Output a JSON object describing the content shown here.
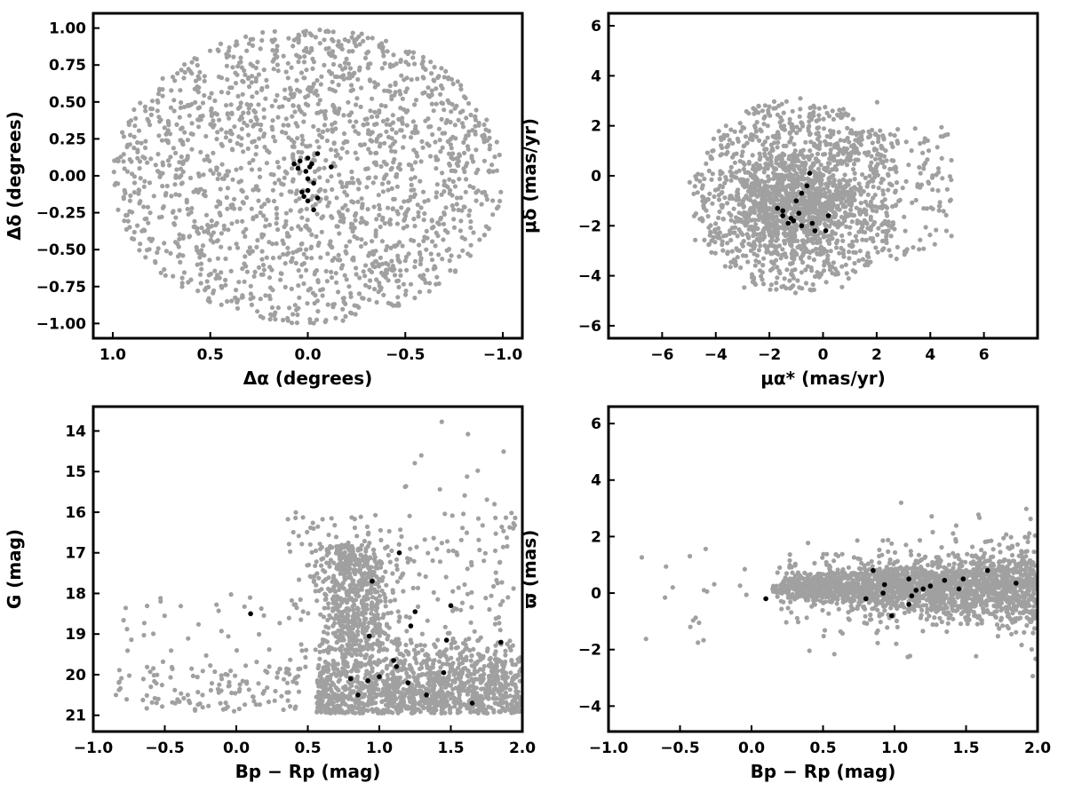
{
  "figure": {
    "background": "#ffffff",
    "field_color": "#a0a0a0",
    "member_color": "#000000"
  },
  "chart_data": [
    {
      "id": "panel-position",
      "type": "scatter",
      "xlabel": "Δα (degrees)",
      "ylabel": "Δδ (degrees)",
      "xlim": [
        1.1,
        -1.1
      ],
      "ylim": [
        -1.1,
        1.1
      ],
      "x_reversed": true,
      "xticks": [
        1.0,
        0.5,
        0.0,
        -0.5,
        -1.0
      ],
      "xtick_labels": [
        "1.0",
        "0.5",
        "0.0",
        "−0.5",
        "−1.0"
      ],
      "yticks": [
        -1.0,
        -0.75,
        -0.5,
        -0.25,
        0.0,
        0.25,
        0.5,
        0.75,
        1.0
      ],
      "ytick_labels": [
        "−1.00",
        "−0.75",
        "−0.50",
        "−0.25",
        "0.00",
        "0.25",
        "0.50",
        "0.75",
        "1.00"
      ],
      "field_distribution": {
        "shape": "disk",
        "center": [
          0.0,
          0.0
        ],
        "radius": 1.0,
        "count": 1800
      },
      "members": {
        "x": [
          0.04,
          0.0,
          -0.01,
          -0.02,
          0.05,
          0.07,
          0.01,
          0.0,
          -0.03,
          -0.12,
          0.0,
          0.03,
          -0.05,
          0.0,
          0.02,
          -0.03,
          -0.05
        ],
        "y": [
          0.1,
          0.12,
          0.06,
          0.08,
          0.05,
          0.08,
          0.03,
          -0.02,
          -0.05,
          0.06,
          -0.1,
          -0.11,
          -0.15,
          -0.17,
          -0.14,
          -0.23,
          0.15
        ]
      }
    },
    {
      "id": "panel-proper-motion",
      "type": "scatter",
      "xlabel": "μα* (mas/yr)",
      "ylabel": "μδ (mas/yr)",
      "xlim": [
        -8,
        8
      ],
      "ylim": [
        -6.5,
        6.5
      ],
      "xticks": [
        -6,
        -4,
        -2,
        0,
        2,
        4,
        6
      ],
      "xtick_labels": [
        "−6",
        "−4",
        "−2",
        "0",
        "2",
        "4",
        "6"
      ],
      "yticks": [
        -6,
        -4,
        -2,
        0,
        2,
        4,
        6
      ],
      "ytick_labels": [
        "−6",
        "−4",
        "−2",
        "0",
        "2",
        "4",
        "6"
      ],
      "field_distribution": {
        "shape": "disk",
        "center": [
          -1.0,
          -0.8
        ],
        "radius": 4.0,
        "concentration": [
          -1.0,
          -1.0
        ],
        "count": 2000,
        "sparse_tail_toward": [
          4.0,
          0.0
        ]
      },
      "members": {
        "x": [
          -0.5,
          -1.7,
          -1.5,
          -1.3,
          -0.8,
          -1.0,
          -1.1,
          -0.9,
          -1.2,
          -0.6,
          -0.4,
          0.2,
          0.1,
          -1.5,
          -0.8,
          -0.3
        ],
        "y": [
          0.1,
          -1.3,
          -1.6,
          -1.9,
          -0.7,
          -1.0,
          -1.8,
          -1.5,
          -1.7,
          -0.4,
          -1.9,
          -1.6,
          -2.2,
          -1.4,
          -2.0,
          -2.2
        ]
      }
    },
    {
      "id": "panel-cmd",
      "type": "scatter",
      "xlabel": "Bp − Rp (mag)",
      "ylabel": "G (mag)",
      "xlim": [
        -1.0,
        2.0
      ],
      "ylim": [
        21.4,
        13.4
      ],
      "y_reversed": true,
      "xticks": [
        -1.0,
        -0.5,
        0.0,
        0.5,
        1.0,
        1.5,
        2.0
      ],
      "xtick_labels": [
        "−1.0",
        "−0.5",
        "0.0",
        "0.5",
        "1.0",
        "1.5",
        "2.0"
      ],
      "yticks": [
        14,
        15,
        16,
        17,
        18,
        19,
        20,
        21
      ],
      "ytick_labels": [
        "14",
        "15",
        "16",
        "17",
        "18",
        "19",
        "20",
        "21"
      ],
      "field_distribution": {
        "shape": "cmd-branch",
        "count": 2200
      },
      "members": {
        "x": [
          0.1,
          0.85,
          0.8,
          0.92,
          1.0,
          0.93,
          1.12,
          1.1,
          1.2,
          1.22,
          1.25,
          1.14,
          1.33,
          1.45,
          1.47,
          1.5,
          1.65,
          1.85,
          0.95
        ],
        "y": [
          18.5,
          20.5,
          20.1,
          20.15,
          20.05,
          19.05,
          19.8,
          19.65,
          20.2,
          18.8,
          18.45,
          17.0,
          20.5,
          19.95,
          19.15,
          18.3,
          20.7,
          19.2,
          17.7
        ]
      }
    },
    {
      "id": "panel-parallax",
      "type": "scatter",
      "xlabel": "Bp − Rp (mag)",
      "ylabel": "ϖ (mas)",
      "xlim": [
        -1.0,
        2.0
      ],
      "ylim": [
        -4.9,
        6.6
      ],
      "xticks": [
        -1.0,
        -0.5,
        0.0,
        0.5,
        1.0,
        1.5,
        2.0
      ],
      "xtick_labels": [
        "−1.0",
        "−0.5",
        "0.0",
        "0.5",
        "1.0",
        "1.5",
        "2.0"
      ],
      "yticks": [
        -4,
        -2,
        0,
        2,
        4,
        6
      ],
      "ytick_labels": [
        "−4",
        "−2",
        "0",
        "2",
        "4",
        "6"
      ],
      "field_distribution": {
        "shape": "horizontal-band",
        "count": 2200
      },
      "members": {
        "x": [
          0.1,
          0.8,
          0.85,
          0.92,
          0.93,
          0.98,
          1.1,
          1.12,
          1.15,
          1.2,
          1.25,
          1.35,
          1.45,
          1.48,
          1.65,
          1.85,
          1.1
        ],
        "y": [
          -0.2,
          -0.2,
          0.8,
          0.0,
          0.3,
          -0.8,
          0.5,
          -0.1,
          0.1,
          0.15,
          0.25,
          0.45,
          0.15,
          0.5,
          0.8,
          0.35,
          -0.4
        ]
      }
    }
  ]
}
